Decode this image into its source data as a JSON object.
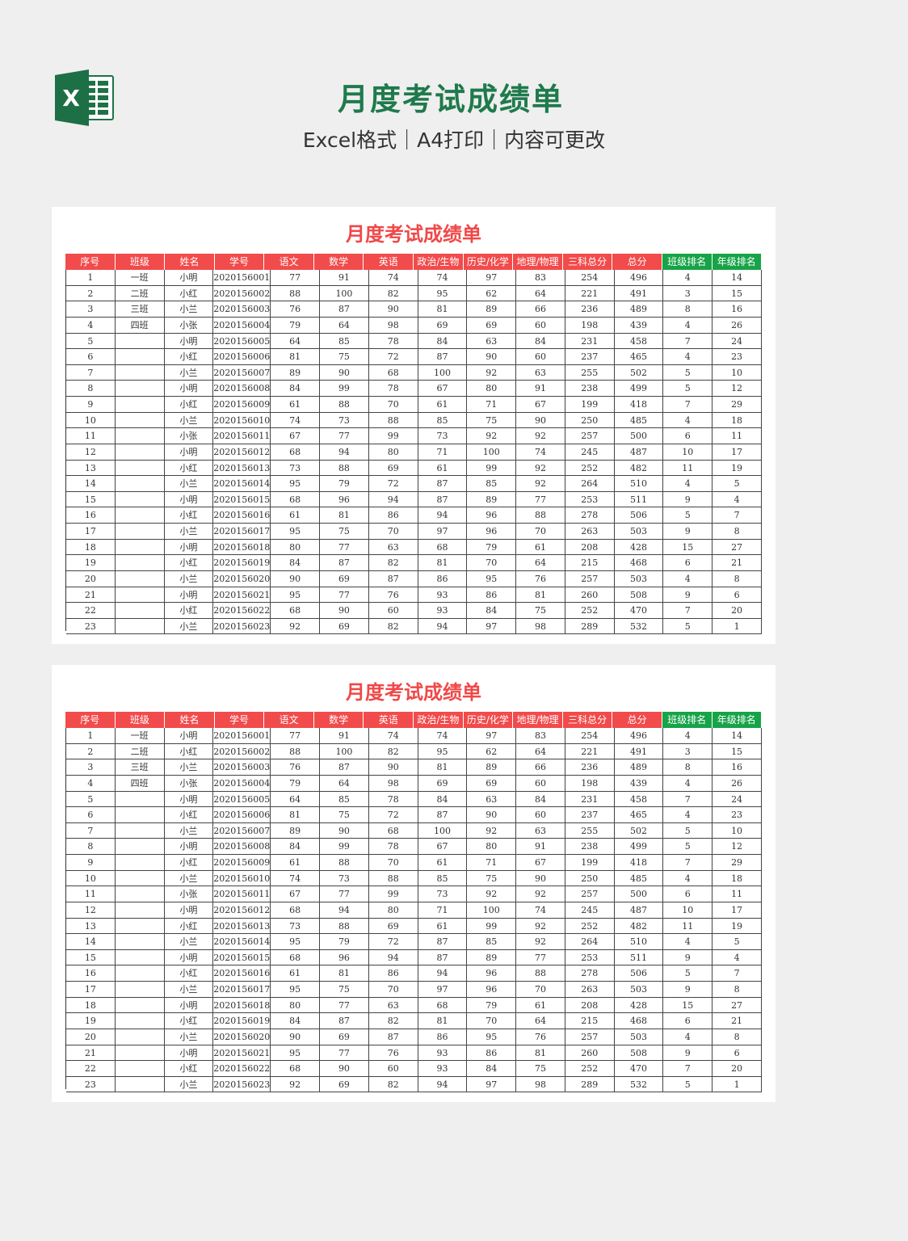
{
  "header": {
    "logo_icon": "excel-logo-icon",
    "title": "月度考试成绩单",
    "subtitle": "Excel格式｜A4打印｜内容可更改"
  },
  "colors": {
    "header_red": "#f24b4b",
    "header_green": "#17a347",
    "title_red": "#f04848",
    "title_green": "#1f7a4c"
  },
  "sheet": {
    "title": "月度考试成绩单",
    "columns": [
      "序号",
      "班级",
      "姓名",
      "学号",
      "语文",
      "数学",
      "英语",
      "政治/生物",
      "历史/化学",
      "地理/物理",
      "三科总分",
      "总分",
      "班级排名",
      "年级排名"
    ],
    "green_columns": [
      12,
      13
    ],
    "rows": [
      [
        "1",
        "一班",
        "小明",
        "2020156001",
        "77",
        "91",
        "74",
        "74",
        "97",
        "83",
        "254",
        "496",
        "4",
        "14"
      ],
      [
        "2",
        "二班",
        "小红",
        "2020156002",
        "88",
        "100",
        "82",
        "95",
        "62",
        "64",
        "221",
        "491",
        "3",
        "15"
      ],
      [
        "3",
        "三班",
        "小兰",
        "2020156003",
        "76",
        "87",
        "90",
        "81",
        "89",
        "66",
        "236",
        "489",
        "8",
        "16"
      ],
      [
        "4",
        "四班",
        "小张",
        "2020156004",
        "79",
        "64",
        "98",
        "69",
        "69",
        "60",
        "198",
        "439",
        "4",
        "26"
      ],
      [
        "5",
        "",
        "小明",
        "2020156005",
        "64",
        "85",
        "78",
        "84",
        "63",
        "84",
        "231",
        "458",
        "7",
        "24"
      ],
      [
        "6",
        "",
        "小红",
        "2020156006",
        "81",
        "75",
        "72",
        "87",
        "90",
        "60",
        "237",
        "465",
        "4",
        "23"
      ],
      [
        "7",
        "",
        "小兰",
        "2020156007",
        "89",
        "90",
        "68",
        "100",
        "92",
        "63",
        "255",
        "502",
        "5",
        "10"
      ],
      [
        "8",
        "",
        "小明",
        "2020156008",
        "84",
        "99",
        "78",
        "67",
        "80",
        "91",
        "238",
        "499",
        "5",
        "12"
      ],
      [
        "9",
        "",
        "小红",
        "2020156009",
        "61",
        "88",
        "70",
        "61",
        "71",
        "67",
        "199",
        "418",
        "7",
        "29"
      ],
      [
        "10",
        "",
        "小兰",
        "2020156010",
        "74",
        "73",
        "88",
        "85",
        "75",
        "90",
        "250",
        "485",
        "4",
        "18"
      ],
      [
        "11",
        "",
        "小张",
        "2020156011",
        "67",
        "77",
        "99",
        "73",
        "92",
        "92",
        "257",
        "500",
        "6",
        "11"
      ],
      [
        "12",
        "",
        "小明",
        "2020156012",
        "68",
        "94",
        "80",
        "71",
        "100",
        "74",
        "245",
        "487",
        "10",
        "17"
      ],
      [
        "13",
        "",
        "小红",
        "2020156013",
        "73",
        "88",
        "69",
        "61",
        "99",
        "92",
        "252",
        "482",
        "11",
        "19"
      ],
      [
        "14",
        "",
        "小兰",
        "2020156014",
        "95",
        "79",
        "72",
        "87",
        "85",
        "92",
        "264",
        "510",
        "4",
        "5"
      ],
      [
        "15",
        "",
        "小明",
        "2020156015",
        "68",
        "96",
        "94",
        "87",
        "89",
        "77",
        "253",
        "511",
        "9",
        "4"
      ],
      [
        "16",
        "",
        "小红",
        "2020156016",
        "61",
        "81",
        "86",
        "94",
        "96",
        "88",
        "278",
        "506",
        "5",
        "7"
      ],
      [
        "17",
        "",
        "小兰",
        "2020156017",
        "95",
        "75",
        "70",
        "97",
        "96",
        "70",
        "263",
        "503",
        "9",
        "8"
      ],
      [
        "18",
        "",
        "小明",
        "2020156018",
        "80",
        "77",
        "63",
        "68",
        "79",
        "61",
        "208",
        "428",
        "15",
        "27"
      ],
      [
        "19",
        "",
        "小红",
        "2020156019",
        "84",
        "87",
        "82",
        "81",
        "70",
        "64",
        "215",
        "468",
        "6",
        "21"
      ],
      [
        "20",
        "",
        "小兰",
        "2020156020",
        "90",
        "69",
        "87",
        "86",
        "95",
        "76",
        "257",
        "503",
        "4",
        "8"
      ],
      [
        "21",
        "",
        "小明",
        "2020156021",
        "95",
        "77",
        "76",
        "93",
        "86",
        "81",
        "260",
        "508",
        "9",
        "6"
      ],
      [
        "22",
        "",
        "小红",
        "2020156022",
        "68",
        "90",
        "60",
        "93",
        "84",
        "75",
        "252",
        "470",
        "7",
        "20"
      ],
      [
        "23",
        "",
        "小兰",
        "2020156023",
        "92",
        "69",
        "82",
        "94",
        "97",
        "98",
        "289",
        "532",
        "5",
        "1"
      ]
    ]
  }
}
